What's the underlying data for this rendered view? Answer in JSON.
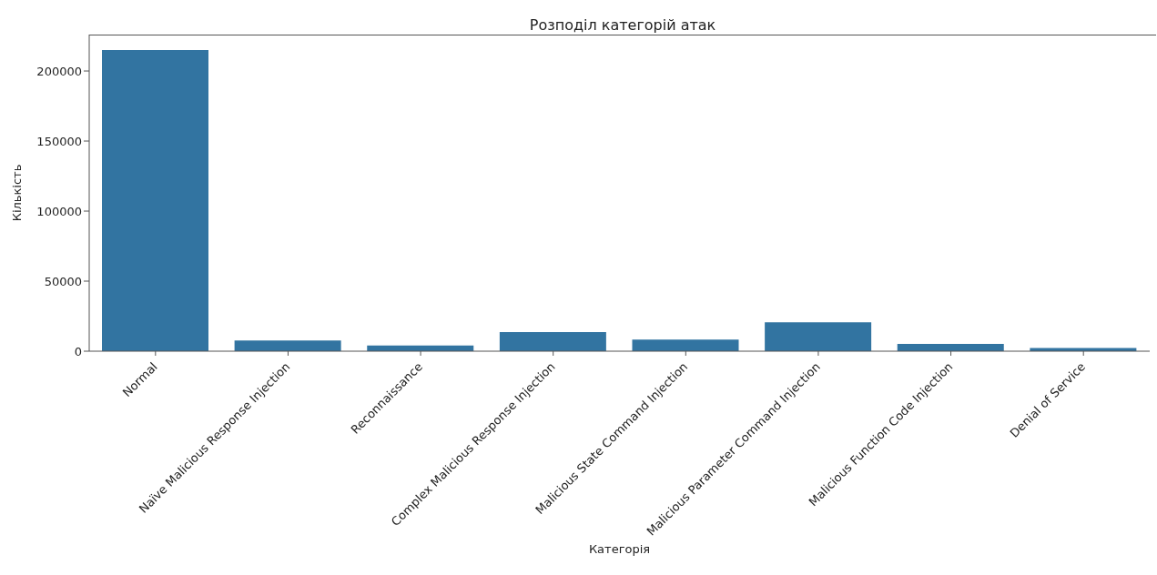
{
  "chart_data": {
    "type": "bar",
    "title": "Розподіл категорій атак",
    "xlabel": "Категорія",
    "ylabel": "Кількість",
    "categories": [
      "Normal",
      "Naïve Malicious Response Injection",
      "Reconnaissance",
      "Complex Malicious Response Injection",
      "Malicious State Command Injection",
      "Malicious Parameter Command Injection",
      "Malicious Function Code Injection",
      "Denial of Service"
    ],
    "values": [
      215000,
      7700,
      4000,
      13600,
      8300,
      20600,
      5200,
      2300
    ],
    "color": "#3274a1",
    "ylim": [
      0,
      226000
    ],
    "yticks": [
      0,
      50000,
      100000,
      150000,
      200000
    ],
    "grid": false
  }
}
